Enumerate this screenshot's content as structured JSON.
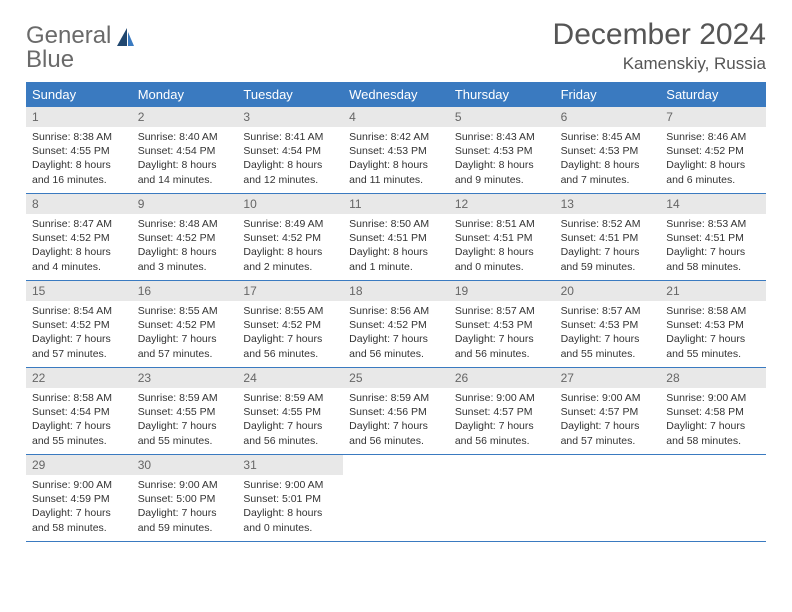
{
  "brand": {
    "word1": "General",
    "word2": "Blue"
  },
  "title": "December 2024",
  "location": "Kamenskiy, Russia",
  "colors": {
    "header_bg": "#3a7ac0",
    "header_text": "#ffffff",
    "daynum_bg": "#e8e8e8",
    "daynum_text": "#666666",
    "cell_text": "#333333",
    "rule": "#3a7ac0",
    "logo_gray": "#6a6a6a",
    "logo_blue": "#3a7ac0"
  },
  "day_names": [
    "Sunday",
    "Monday",
    "Tuesday",
    "Wednesday",
    "Thursday",
    "Friday",
    "Saturday"
  ],
  "weeks": [
    [
      {
        "n": "1",
        "sr": "Sunrise: 8:38 AM",
        "ss": "Sunset: 4:55 PM",
        "d1": "Daylight: 8 hours",
        "d2": "and 16 minutes."
      },
      {
        "n": "2",
        "sr": "Sunrise: 8:40 AM",
        "ss": "Sunset: 4:54 PM",
        "d1": "Daylight: 8 hours",
        "d2": "and 14 minutes."
      },
      {
        "n": "3",
        "sr": "Sunrise: 8:41 AM",
        "ss": "Sunset: 4:54 PM",
        "d1": "Daylight: 8 hours",
        "d2": "and 12 minutes."
      },
      {
        "n": "4",
        "sr": "Sunrise: 8:42 AM",
        "ss": "Sunset: 4:53 PM",
        "d1": "Daylight: 8 hours",
        "d2": "and 11 minutes."
      },
      {
        "n": "5",
        "sr": "Sunrise: 8:43 AM",
        "ss": "Sunset: 4:53 PM",
        "d1": "Daylight: 8 hours",
        "d2": "and 9 minutes."
      },
      {
        "n": "6",
        "sr": "Sunrise: 8:45 AM",
        "ss": "Sunset: 4:53 PM",
        "d1": "Daylight: 8 hours",
        "d2": "and 7 minutes."
      },
      {
        "n": "7",
        "sr": "Sunrise: 8:46 AM",
        "ss": "Sunset: 4:52 PM",
        "d1": "Daylight: 8 hours",
        "d2": "and 6 minutes."
      }
    ],
    [
      {
        "n": "8",
        "sr": "Sunrise: 8:47 AM",
        "ss": "Sunset: 4:52 PM",
        "d1": "Daylight: 8 hours",
        "d2": "and 4 minutes."
      },
      {
        "n": "9",
        "sr": "Sunrise: 8:48 AM",
        "ss": "Sunset: 4:52 PM",
        "d1": "Daylight: 8 hours",
        "d2": "and 3 minutes."
      },
      {
        "n": "10",
        "sr": "Sunrise: 8:49 AM",
        "ss": "Sunset: 4:52 PM",
        "d1": "Daylight: 8 hours",
        "d2": "and 2 minutes."
      },
      {
        "n": "11",
        "sr": "Sunrise: 8:50 AM",
        "ss": "Sunset: 4:51 PM",
        "d1": "Daylight: 8 hours",
        "d2": "and 1 minute."
      },
      {
        "n": "12",
        "sr": "Sunrise: 8:51 AM",
        "ss": "Sunset: 4:51 PM",
        "d1": "Daylight: 8 hours",
        "d2": "and 0 minutes."
      },
      {
        "n": "13",
        "sr": "Sunrise: 8:52 AM",
        "ss": "Sunset: 4:51 PM",
        "d1": "Daylight: 7 hours",
        "d2": "and 59 minutes."
      },
      {
        "n": "14",
        "sr": "Sunrise: 8:53 AM",
        "ss": "Sunset: 4:51 PM",
        "d1": "Daylight: 7 hours",
        "d2": "and 58 minutes."
      }
    ],
    [
      {
        "n": "15",
        "sr": "Sunrise: 8:54 AM",
        "ss": "Sunset: 4:52 PM",
        "d1": "Daylight: 7 hours",
        "d2": "and 57 minutes."
      },
      {
        "n": "16",
        "sr": "Sunrise: 8:55 AM",
        "ss": "Sunset: 4:52 PM",
        "d1": "Daylight: 7 hours",
        "d2": "and 57 minutes."
      },
      {
        "n": "17",
        "sr": "Sunrise: 8:55 AM",
        "ss": "Sunset: 4:52 PM",
        "d1": "Daylight: 7 hours",
        "d2": "and 56 minutes."
      },
      {
        "n": "18",
        "sr": "Sunrise: 8:56 AM",
        "ss": "Sunset: 4:52 PM",
        "d1": "Daylight: 7 hours",
        "d2": "and 56 minutes."
      },
      {
        "n": "19",
        "sr": "Sunrise: 8:57 AM",
        "ss": "Sunset: 4:53 PM",
        "d1": "Daylight: 7 hours",
        "d2": "and 56 minutes."
      },
      {
        "n": "20",
        "sr": "Sunrise: 8:57 AM",
        "ss": "Sunset: 4:53 PM",
        "d1": "Daylight: 7 hours",
        "d2": "and 55 minutes."
      },
      {
        "n": "21",
        "sr": "Sunrise: 8:58 AM",
        "ss": "Sunset: 4:53 PM",
        "d1": "Daylight: 7 hours",
        "d2": "and 55 minutes."
      }
    ],
    [
      {
        "n": "22",
        "sr": "Sunrise: 8:58 AM",
        "ss": "Sunset: 4:54 PM",
        "d1": "Daylight: 7 hours",
        "d2": "and 55 minutes."
      },
      {
        "n": "23",
        "sr": "Sunrise: 8:59 AM",
        "ss": "Sunset: 4:55 PM",
        "d1": "Daylight: 7 hours",
        "d2": "and 55 minutes."
      },
      {
        "n": "24",
        "sr": "Sunrise: 8:59 AM",
        "ss": "Sunset: 4:55 PM",
        "d1": "Daylight: 7 hours",
        "d2": "and 56 minutes."
      },
      {
        "n": "25",
        "sr": "Sunrise: 8:59 AM",
        "ss": "Sunset: 4:56 PM",
        "d1": "Daylight: 7 hours",
        "d2": "and 56 minutes."
      },
      {
        "n": "26",
        "sr": "Sunrise: 9:00 AM",
        "ss": "Sunset: 4:57 PM",
        "d1": "Daylight: 7 hours",
        "d2": "and 56 minutes."
      },
      {
        "n": "27",
        "sr": "Sunrise: 9:00 AM",
        "ss": "Sunset: 4:57 PM",
        "d1": "Daylight: 7 hours",
        "d2": "and 57 minutes."
      },
      {
        "n": "28",
        "sr": "Sunrise: 9:00 AM",
        "ss": "Sunset: 4:58 PM",
        "d1": "Daylight: 7 hours",
        "d2": "and 58 minutes."
      }
    ],
    [
      {
        "n": "29",
        "sr": "Sunrise: 9:00 AM",
        "ss": "Sunset: 4:59 PM",
        "d1": "Daylight: 7 hours",
        "d2": "and 58 minutes."
      },
      {
        "n": "30",
        "sr": "Sunrise: 9:00 AM",
        "ss": "Sunset: 5:00 PM",
        "d1": "Daylight: 7 hours",
        "d2": "and 59 minutes."
      },
      {
        "n": "31",
        "sr": "Sunrise: 9:00 AM",
        "ss": "Sunset: 5:01 PM",
        "d1": "Daylight: 8 hours",
        "d2": "and 0 minutes."
      },
      null,
      null,
      null,
      null
    ]
  ]
}
